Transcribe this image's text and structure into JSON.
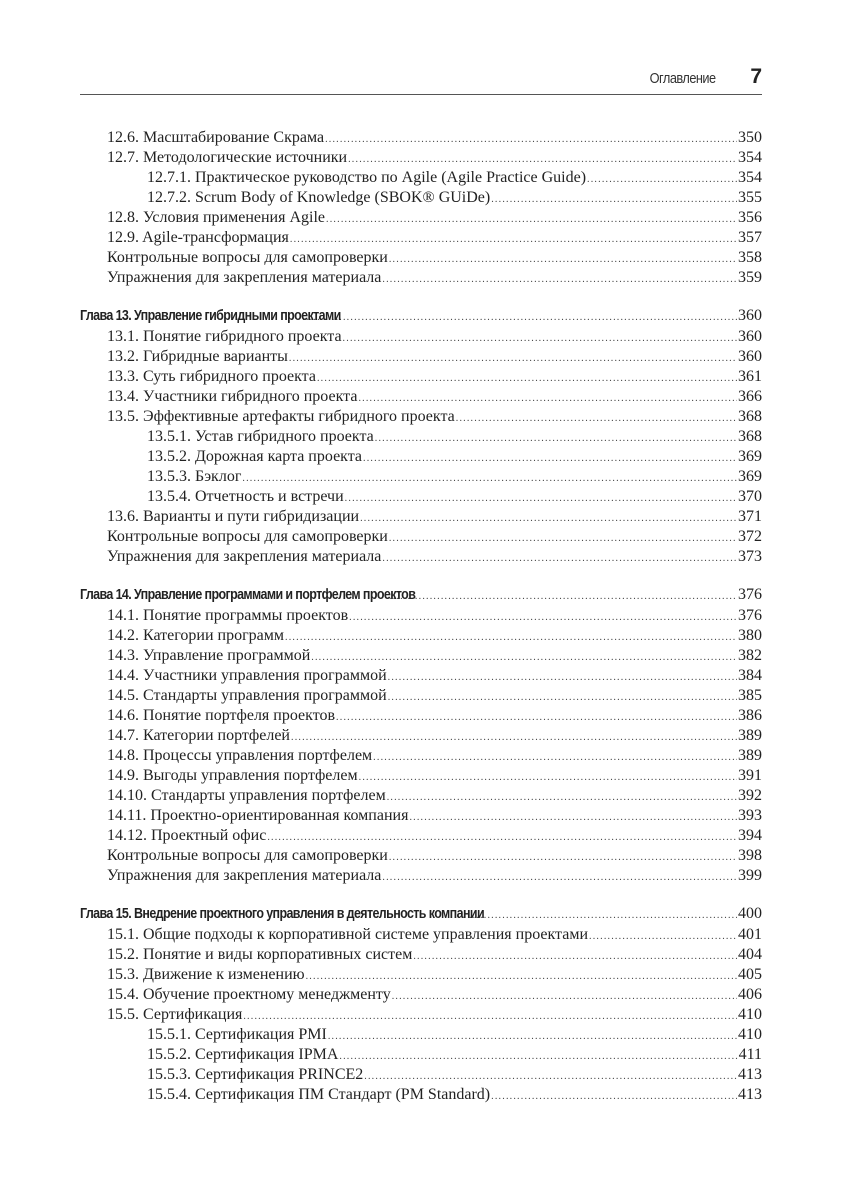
{
  "header": {
    "running_title": "Оглавление",
    "page_number": "7"
  },
  "sections": [
    {
      "entries": [
        {
          "level": 1,
          "title": "12.6. Масштабирование Скрама",
          "page": "350"
        },
        {
          "level": 1,
          "title": "12.7. Методологические источники",
          "page": "354"
        },
        {
          "level": 2,
          "title": "12.7.1. Практическое руководство по Agile (Agile Practice Guide)",
          "page": "354"
        },
        {
          "level": 2,
          "title": "12.7.2. Scrum Body of Knowledge (SBOK® GUiDe)",
          "page": "355"
        },
        {
          "level": 1,
          "title": "12.8. Условия применения Agile",
          "page": "356"
        },
        {
          "level": 1,
          "title": "12.9. Agile-трансформация",
          "page": "357"
        },
        {
          "level": 1,
          "title": "Контрольные вопросы для самопроверки",
          "page": "358"
        },
        {
          "level": 1,
          "title": "Упражнения для закрепления материала",
          "page": "359"
        }
      ]
    },
    {
      "entries": [
        {
          "level": 0,
          "title": "Глава 13. Управление гибридными проектами",
          "page": "360"
        },
        {
          "level": 1,
          "title": "13.1. Понятие гибридного проекта",
          "page": "360"
        },
        {
          "level": 1,
          "title": "13.2. Гибридные варианты",
          "page": "360"
        },
        {
          "level": 1,
          "title": "13.3. Суть гибридного проекта",
          "page": "361"
        },
        {
          "level": 1,
          "title": "13.4. Участники гибридного проекта",
          "page": "366"
        },
        {
          "level": 1,
          "title": "13.5. Эффективные артефакты гибридного проекта",
          "page": "368"
        },
        {
          "level": 2,
          "title": "13.5.1. Устав гибридного проекта",
          "page": "368"
        },
        {
          "level": 2,
          "title": "13.5.2. Дорожная карта проекта",
          "page": "369"
        },
        {
          "level": 2,
          "title": "13.5.3. Бэклог",
          "page": "369"
        },
        {
          "level": 2,
          "title": "13.5.4. Отчетность и встречи",
          "page": "370"
        },
        {
          "level": 1,
          "title": "13.6. Варианты и пути гибридизации",
          "page": "371"
        },
        {
          "level": 1,
          "title": "Контрольные вопросы для самопроверки",
          "page": "372"
        },
        {
          "level": 1,
          "title": "Упражнения для закрепления материала",
          "page": "373"
        }
      ]
    },
    {
      "entries": [
        {
          "level": 0,
          "title": "Глава 14. Управление программами и портфелем проектов",
          "page": "376"
        },
        {
          "level": 1,
          "title": "14.1. Понятие программы проектов",
          "page": "376"
        },
        {
          "level": 1,
          "title": "14.2. Категории программ",
          "page": "380"
        },
        {
          "level": 1,
          "title": "14.3. Управление программой",
          "page": "382"
        },
        {
          "level": 1,
          "title": "14.4. Участники управления программой",
          "page": "384"
        },
        {
          "level": 1,
          "title": "14.5. Стандарты управления программой",
          "page": "385"
        },
        {
          "level": 1,
          "title": "14.6. Понятие портфеля проектов",
          "page": "386"
        },
        {
          "level": 1,
          "title": "14.7. Категории портфелей",
          "page": "389"
        },
        {
          "level": 1,
          "title": "14.8. Процессы управления портфелем",
          "page": "389"
        },
        {
          "level": 1,
          "title": "14.9. Выгоды управления портфелем",
          "page": "391"
        },
        {
          "level": 1,
          "title": "14.10. Стандарты управления портфелем",
          "page": "392"
        },
        {
          "level": 1,
          "title": "14.11. Проектно-ориентированная компания",
          "page": "393"
        },
        {
          "level": 1,
          "title": "14.12. Проектный офис",
          "page": "394"
        },
        {
          "level": 1,
          "title": "Контрольные вопросы для самопроверки",
          "page": "398"
        },
        {
          "level": 1,
          "title": "Упражнения для закрепления материала",
          "page": "399"
        }
      ]
    },
    {
      "entries": [
        {
          "level": 0,
          "title": "Глава 15. Внедрение проектного управления в деятельность компании",
          "page": "400"
        },
        {
          "level": 1,
          "title": "15.1. Общие подходы к корпоративной системе управления проектами",
          "page": "401"
        },
        {
          "level": 1,
          "title": "15.2. Понятие и виды корпоративных систем",
          "page": "404"
        },
        {
          "level": 1,
          "title": "15.3. Движение к изменению",
          "page": "405"
        },
        {
          "level": 1,
          "title": "15.4. Обучение проектному менеджменту",
          "page": "406"
        },
        {
          "level": 1,
          "title": "15.5. Сертификация",
          "page": "410"
        },
        {
          "level": 2,
          "title": "15.5.1. Сертификация PMI",
          "page": "410"
        },
        {
          "level": 2,
          "title": "15.5.2. Сертификация IPMA",
          "page": "411"
        },
        {
          "level": 2,
          "title": "15.5.3. Сертификация PRINCE2",
          "page": "413"
        },
        {
          "level": 2,
          "title": "15.5.4. Сертификация ПМ Стандарт (PM Standard)",
          "page": "413"
        }
      ]
    }
  ]
}
